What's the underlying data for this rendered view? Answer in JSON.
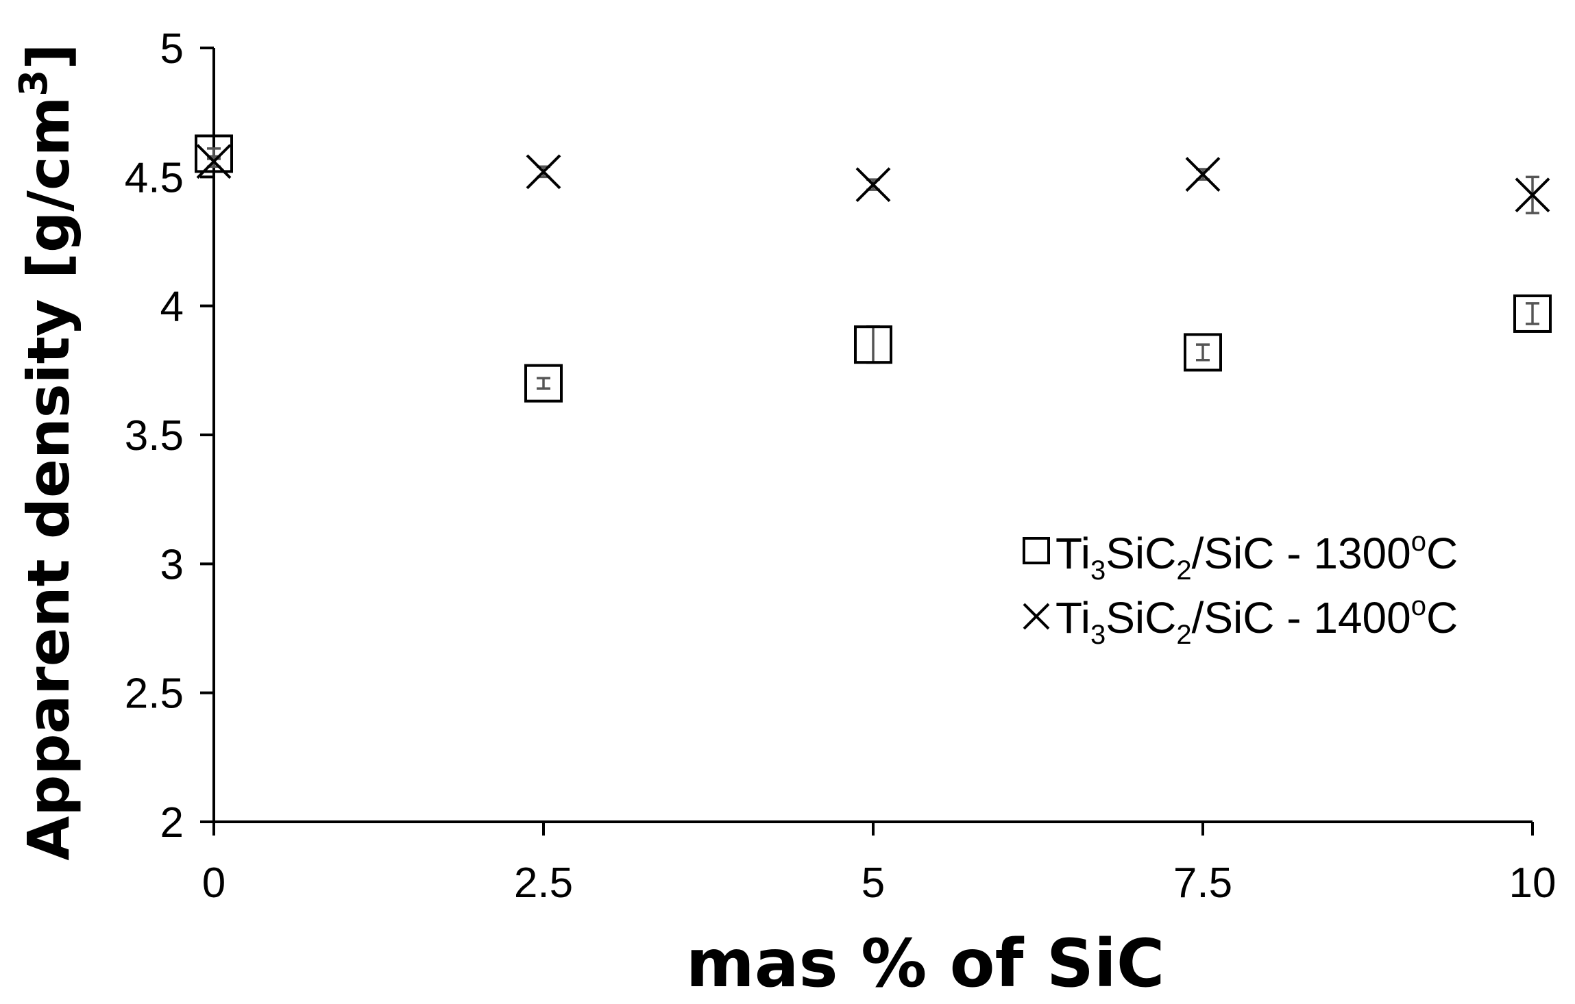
{
  "chart_data": {
    "type": "scatter",
    "title": "",
    "xlabel": "mas % of SiC",
    "ylabel": {
      "main": "Apparent density [g/cm",
      "sup": "3",
      "end": "]"
    },
    "xlim": [
      0,
      10
    ],
    "ylim": [
      2,
      5
    ],
    "x_ticks": [
      "0",
      "2.5",
      "5",
      "7.5",
      "10"
    ],
    "y_ticks": [
      "2",
      "2.5",
      "3",
      "3.5",
      "4",
      "4.5",
      "5"
    ],
    "grid": false,
    "legend_position": "right-middle",
    "series": [
      {
        "key": "s1300",
        "marker": "square",
        "legend": {
          "a": "Ti",
          "s1": "3",
          "b": "SiC",
          "s2": "2",
          "c": "/SiC - 1300",
          "deg": "o",
          "d": "C"
        },
        "x": [
          0,
          2.5,
          5,
          7.5,
          10
        ],
        "y": [
          4.59,
          3.7,
          3.85,
          3.82,
          3.97
        ],
        "err": [
          0.02,
          0.02,
          0.07,
          0.03,
          0.04
        ]
      },
      {
        "key": "s1400",
        "marker": "x",
        "legend": {
          "a": "Ti",
          "s1": "3",
          "b": "SiC",
          "s2": "2",
          "c": "/SiC - 1400",
          "deg": "o",
          "d": "C"
        },
        "x": [
          0,
          2.5,
          5,
          7.5,
          10
        ],
        "y": [
          4.56,
          4.52,
          4.47,
          4.51,
          4.43
        ],
        "err": [
          0.02,
          0.02,
          0.02,
          0.02,
          0.07
        ]
      }
    ]
  }
}
